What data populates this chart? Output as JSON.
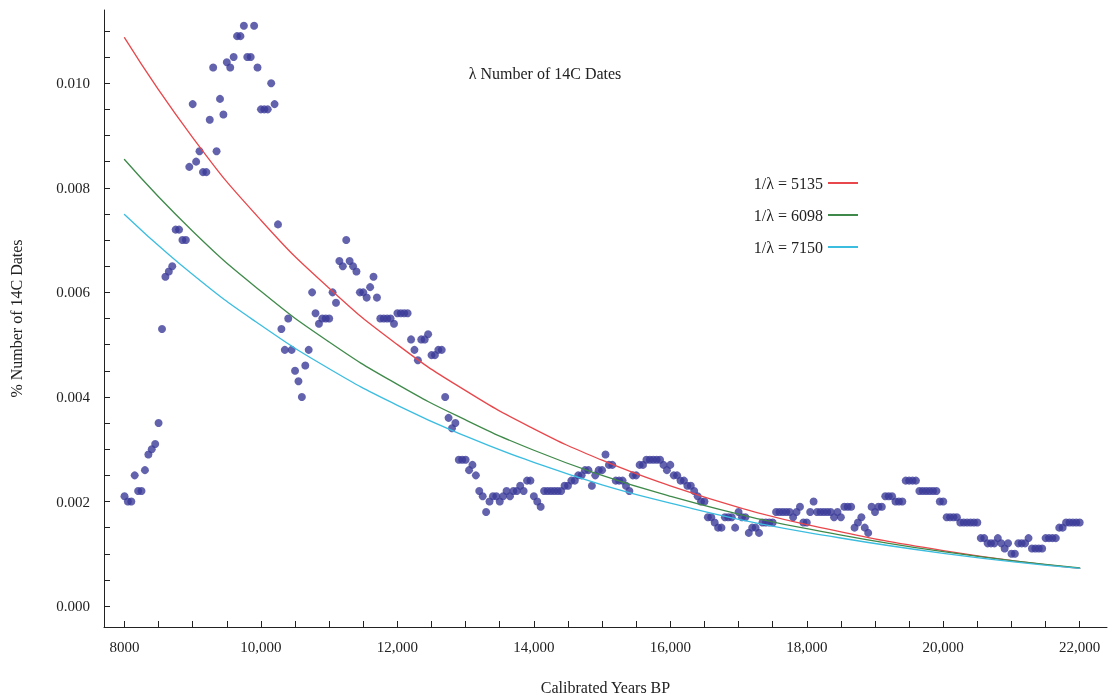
{
  "chart_data": {
    "type": "scatter",
    "title": "λ Number of 14C Dates",
    "xlabel": "Calibrated Years BP",
    "ylabel": "% Number of 14C Dates",
    "xlim": [
      7700,
      22400
    ],
    "ylim": [
      -0.0004,
      0.0114
    ],
    "xticks": [
      {
        "value": 8000,
        "label": "8000"
      },
      {
        "value": 8500,
        "label": null
      },
      {
        "value": 9000,
        "label": null
      },
      {
        "value": 9500,
        "label": null
      },
      {
        "value": 10000,
        "label": "10,000"
      },
      {
        "value": 10500,
        "label": null
      },
      {
        "value": 11000,
        "label": null
      },
      {
        "value": 11500,
        "label": null
      },
      {
        "value": 12000,
        "label": "12,000"
      },
      {
        "value": 12500,
        "label": null
      },
      {
        "value": 13000,
        "label": null
      },
      {
        "value": 13500,
        "label": null
      },
      {
        "value": 14000,
        "label": "14,000"
      },
      {
        "value": 14500,
        "label": null
      },
      {
        "value": 15000,
        "label": null
      },
      {
        "value": 15500,
        "label": null
      },
      {
        "value": 16000,
        "label": "16,000"
      },
      {
        "value": 16500,
        "label": null
      },
      {
        "value": 17000,
        "label": null
      },
      {
        "value": 17500,
        "label": null
      },
      {
        "value": 18000,
        "label": "18,000"
      },
      {
        "value": 18500,
        "label": null
      },
      {
        "value": 19000,
        "label": null
      },
      {
        "value": 19500,
        "label": null
      },
      {
        "value": 20000,
        "label": "20,000"
      },
      {
        "value": 20500,
        "label": null
      },
      {
        "value": 21000,
        "label": null
      },
      {
        "value": 21500,
        "label": null
      },
      {
        "value": 22000,
        "label": "22,000"
      }
    ],
    "yticks": [
      {
        "value": 0,
        "label": "0.000"
      },
      {
        "value": 0.0005,
        "label": null
      },
      {
        "value": 0.001,
        "label": null
      },
      {
        "value": 0.0015,
        "label": null
      },
      {
        "value": 0.002,
        "label": "0.002"
      },
      {
        "value": 0.0025,
        "label": null
      },
      {
        "value": 0.003,
        "label": null
      },
      {
        "value": 0.0035,
        "label": null
      },
      {
        "value": 0.004,
        "label": "0.004"
      },
      {
        "value": 0.0045,
        "label": null
      },
      {
        "value": 0.005,
        "label": null
      },
      {
        "value": 0.0055,
        "label": null
      },
      {
        "value": 0.006,
        "label": "0.006"
      },
      {
        "value": 0.0065,
        "label": null
      },
      {
        "value": 0.007,
        "label": null
      },
      {
        "value": 0.0075,
        "label": null
      },
      {
        "value": 0.008,
        "label": "0.008"
      },
      {
        "value": 0.0085,
        "label": null
      },
      {
        "value": 0.009,
        "label": null
      },
      {
        "value": 0.0095,
        "label": null
      },
      {
        "value": 0.01,
        "label": "0.010"
      },
      {
        "value": 0.0105,
        "label": null
      },
      {
        "value": 0.011,
        "label": null
      }
    ],
    "grid": false,
    "legend": "top right",
    "marker": "circle",
    "series": [
      {
        "color": "#3b3b98",
        "x": [
          8000,
          8050,
          8100,
          8150,
          8200,
          8250,
          8300,
          8350,
          8400,
          8450,
          8500,
          8550,
          8600,
          8650,
          8700,
          8750,
          8800,
          8850,
          8900,
          8950,
          9000,
          9050,
          9100,
          9150,
          9200,
          9250,
          9300,
          9350,
          9400,
          9450,
          9500,
          9550,
          9600,
          9650,
          9700,
          9750,
          9800,
          9850,
          9900,
          9950,
          10000,
          10050,
          10100,
          10150,
          10200,
          10250,
          10300,
          10350,
          10400,
          10450,
          10500,
          10550,
          10600,
          10650,
          10700,
          10750,
          10800,
          10850,
          10900,
          10950,
          11000,
          11050,
          11100,
          11150,
          11200,
          11250,
          11300,
          11350,
          11400,
          11450,
          11500,
          11550,
          11600,
          11650,
          11700,
          11750,
          11800,
          11850,
          11900,
          11950,
          12000,
          12050,
          12100,
          12150,
          12200,
          12250,
          12300,
          12350,
          12400,
          12450,
          12500,
          12550,
          12600,
          12650,
          12700,
          12750,
          12800,
          12850,
          12900,
          12950,
          13000,
          13050,
          13100,
          13150,
          13200,
          13250,
          13300,
          13350,
          13400,
          13450,
          13500,
          13550,
          13600,
          13650,
          13700,
          13750,
          13800,
          13850,
          13900,
          13950,
          14000,
          14050,
          14100,
          14150,
          14200,
          14250,
          14300,
          14350,
          14400,
          14450,
          14500,
          14550,
          14600,
          14650,
          14700,
          14750,
          14800,
          14850,
          14900,
          14950,
          15000,
          15050,
          15100,
          15150,
          15200,
          15250,
          15300,
          15350,
          15400,
          15450,
          15500,
          15550,
          15600,
          15650,
          15700,
          15750,
          15800,
          15850,
          15900,
          15950,
          16000,
          16050,
          16100,
          16150,
          16200,
          16250,
          16300,
          16350,
          16400,
          16450,
          16500,
          16550,
          16600,
          16650,
          16700,
          16750,
          16800,
          16850,
          16900,
          16950,
          17000,
          17050,
          17100,
          17150,
          17200,
          17250,
          17300,
          17350,
          17400,
          17450,
          17500,
          17550,
          17600,
          17650,
          17700,
          17750,
          17800,
          17850,
          17900,
          17950,
          18000,
          18050,
          18100,
          18150,
          18200,
          18250,
          18300,
          18350,
          18400,
          18450,
          18500,
          18550,
          18600,
          18650,
          18700,
          18750,
          18800,
          18850,
          18900,
          18950,
          19000,
          19050,
          19100,
          19150,
          19200,
          19250,
          19300,
          19350,
          19400,
          19450,
          19500,
          19550,
          19600,
          19650,
          19700,
          19750,
          19800,
          19850,
          19900,
          19950,
          20000,
          20050,
          20100,
          20150,
          20200,
          20250,
          20300,
          20350,
          20400,
          20450,
          20500,
          20550,
          20600,
          20650,
          20700,
          20750,
          20800,
          20850,
          20900,
          20950,
          21000,
          21050,
          21100,
          21150,
          21200,
          21250,
          21300,
          21350,
          21400,
          21450,
          21500,
          21550,
          21600,
          21650,
          21700,
          21750,
          21800,
          21850,
          21900,
          21950,
          22000
        ],
        "values": [
          0.0021,
          0.002,
          0.002,
          0.0025,
          0.0022,
          0.0022,
          0.0026,
          0.0029,
          0.003,
          0.0031,
          0.0035,
          0.0053,
          0.0063,
          0.0064,
          0.0065,
          0.0072,
          0.0072,
          0.007,
          0.007,
          0.0084,
          0.0096,
          0.0085,
          0.0087,
          0.0083,
          0.0083,
          0.0093,
          0.0103,
          0.0087,
          0.0097,
          0.0094,
          0.0104,
          0.0103,
          0.0105,
          0.0109,
          0.0109,
          0.0111,
          0.0105,
          0.0105,
          0.0111,
          0.0103,
          0.0095,
          0.0095,
          0.0095,
          0.01,
          0.0096,
          0.0073,
          0.0053,
          0.0049,
          0.0055,
          0.0049,
          0.0045,
          0.0043,
          0.004,
          0.0046,
          0.0049,
          0.006,
          0.0056,
          0.0054,
          0.0055,
          0.0055,
          0.0055,
          0.006,
          0.0058,
          0.0066,
          0.0065,
          0.007,
          0.0066,
          0.0065,
          0.0064,
          0.006,
          0.006,
          0.0059,
          0.0061,
          0.0063,
          0.0059,
          0.0055,
          0.0055,
          0.0055,
          0.0055,
          0.0054,
          0.0056,
          0.0056,
          0.0056,
          0.0056,
          0.0051,
          0.0049,
          0.0047,
          0.0051,
          0.0051,
          0.0052,
          0.0048,
          0.0048,
          0.0049,
          0.0049,
          0.004,
          0.0036,
          0.0034,
          0.0035,
          0.0028,
          0.0028,
          0.0028,
          0.0026,
          0.0027,
          0.0025,
          0.0022,
          0.0021,
          0.0018,
          0.002,
          0.0021,
          0.0021,
          0.002,
          0.0021,
          0.0022,
          0.0021,
          0.0022,
          0.0022,
          0.0023,
          0.0022,
          0.0024,
          0.0024,
          0.0021,
          0.002,
          0.0019,
          0.0022,
          0.0022,
          0.0022,
          0.0022,
          0.0022,
          0.0022,
          0.0023,
          0.0023,
          0.0024,
          0.0024,
          0.0025,
          0.0025,
          0.0026,
          0.0026,
          0.0023,
          0.0025,
          0.0026,
          0.0026,
          0.0029,
          0.0027,
          0.0027,
          0.0024,
          0.0024,
          0.0024,
          0.0023,
          0.0022,
          0.0025,
          0.0025,
          0.0027,
          0.0027,
          0.0028,
          0.0028,
          0.0028,
          0.0028,
          0.0028,
          0.0027,
          0.0026,
          0.0027,
          0.0025,
          0.0025,
          0.0024,
          0.0024,
          0.0023,
          0.0023,
          0.0022,
          0.0021,
          0.002,
          0.002,
          0.0017,
          0.0017,
          0.0016,
          0.0015,
          0.0015,
          0.0017,
          0.0017,
          0.0017,
          0.0015,
          0.0018,
          0.0017,
          0.0017,
          0.0014,
          0.0015,
          0.0015,
          0.0014,
          0.0016,
          0.0016,
          0.0016,
          0.0016,
          0.0018,
          0.0018,
          0.0018,
          0.0018,
          0.0018,
          0.0017,
          0.0018,
          0.0019,
          0.0016,
          0.0016,
          0.0018,
          0.002,
          0.0018,
          0.0018,
          0.0018,
          0.0018,
          0.0018,
          0.0017,
          0.0018,
          0.0017,
          0.0019,
          0.0019,
          0.0019,
          0.0015,
          0.0016,
          0.0017,
          0.0015,
          0.0014,
          0.0019,
          0.0018,
          0.0019,
          0.0019,
          0.0021,
          0.0021,
          0.0021,
          0.002,
          0.002,
          0.002,
          0.0024,
          0.0024,
          0.0024,
          0.0024,
          0.0022,
          0.0022,
          0.0022,
          0.0022,
          0.0022,
          0.0022,
          0.002,
          0.002,
          0.0017,
          0.0017,
          0.0017,
          0.0017,
          0.0016,
          0.0016,
          0.0016,
          0.0016,
          0.0016,
          0.0016,
          0.0013,
          0.0013,
          0.0012,
          0.0012,
          0.0012,
          0.0013,
          0.0012,
          0.0011,
          0.0012,
          0.001,
          0.001,
          0.0012,
          0.0012,
          0.0012,
          0.0013,
          0.0011,
          0.0011,
          0.0011,
          0.0011,
          0.0013,
          0.0013,
          0.0013,
          0.0013,
          0.0015,
          0.0015,
          0.0016,
          0.0016,
          0.0016,
          0.0016,
          0.0016
        ]
      },
      {
        "type": "line",
        "name": "1/λ = 5135",
        "color": "#e8474b",
        "marker": "none",
        "x": [
          8000,
          9000,
          10000,
          11000,
          12000,
          13000,
          14000,
          15000,
          16000,
          17000,
          18000,
          20000,
          22000
        ],
        "values": [
          0.01087,
          0.00896,
          0.00738,
          0.00608,
          0.005,
          0.00412,
          0.00339,
          0.00279,
          0.0023,
          0.00189,
          0.00156,
          0.00106,
          0.00072
        ]
      },
      {
        "type": "line",
        "name": "1/λ = 6098",
        "color": "#3f8a4a",
        "marker": "none",
        "x": [
          8000,
          9000,
          10000,
          11000,
          12000,
          13000,
          14000,
          15000,
          16000,
          17000,
          18000,
          20000,
          22000
        ],
        "values": [
          0.00854,
          0.00717,
          0.00602,
          0.00505,
          0.00424,
          0.00356,
          0.00298,
          0.0025,
          0.0021,
          0.00176,
          0.00148,
          0.00104,
          0.00073
        ]
      },
      {
        "type": "line",
        "name": "1/λ = 7150",
        "color": "#3bbde0",
        "marker": "none",
        "x": [
          8000,
          9000,
          10000,
          11000,
          12000,
          13000,
          14000,
          15000,
          16000,
          17000,
          18000,
          20000,
          22000
        ],
        "values": [
          0.00749,
          0.00634,
          0.00537,
          0.00454,
          0.00384,
          0.00325,
          0.00275,
          0.00232,
          0.00197,
          0.00166,
          0.00141,
          0.00101,
          0.00072
        ]
      }
    ]
  }
}
